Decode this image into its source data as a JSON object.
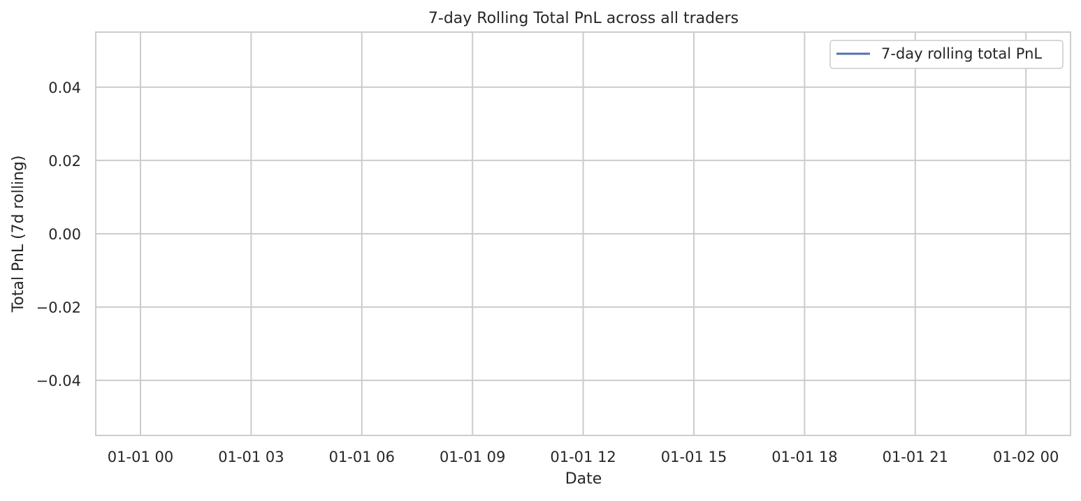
{
  "chart_data": {
    "type": "line",
    "title": "7-day Rolling Total PnL across all traders",
    "xlabel": "Date",
    "ylabel": "Total PnL (7d rolling)",
    "x_ticks": [
      "01-01 00",
      "01-01 03",
      "01-01 06",
      "01-01 09",
      "01-01 12",
      "01-01 15",
      "01-01 18",
      "01-01 21",
      "01-02 00"
    ],
    "y_ticks": [
      "0.04",
      "0.02",
      "0.00",
      "−0.02",
      "−0.04"
    ],
    "y_tick_values": [
      0.04,
      0.02,
      0.0,
      -0.02,
      -0.04
    ],
    "ylim": [
      -0.055,
      0.055
    ],
    "grid": true,
    "legend_position": "top-right",
    "series": [
      {
        "name": "7-day rolling total PnL",
        "color": "#4c72b0",
        "x": [],
        "values": []
      }
    ]
  }
}
